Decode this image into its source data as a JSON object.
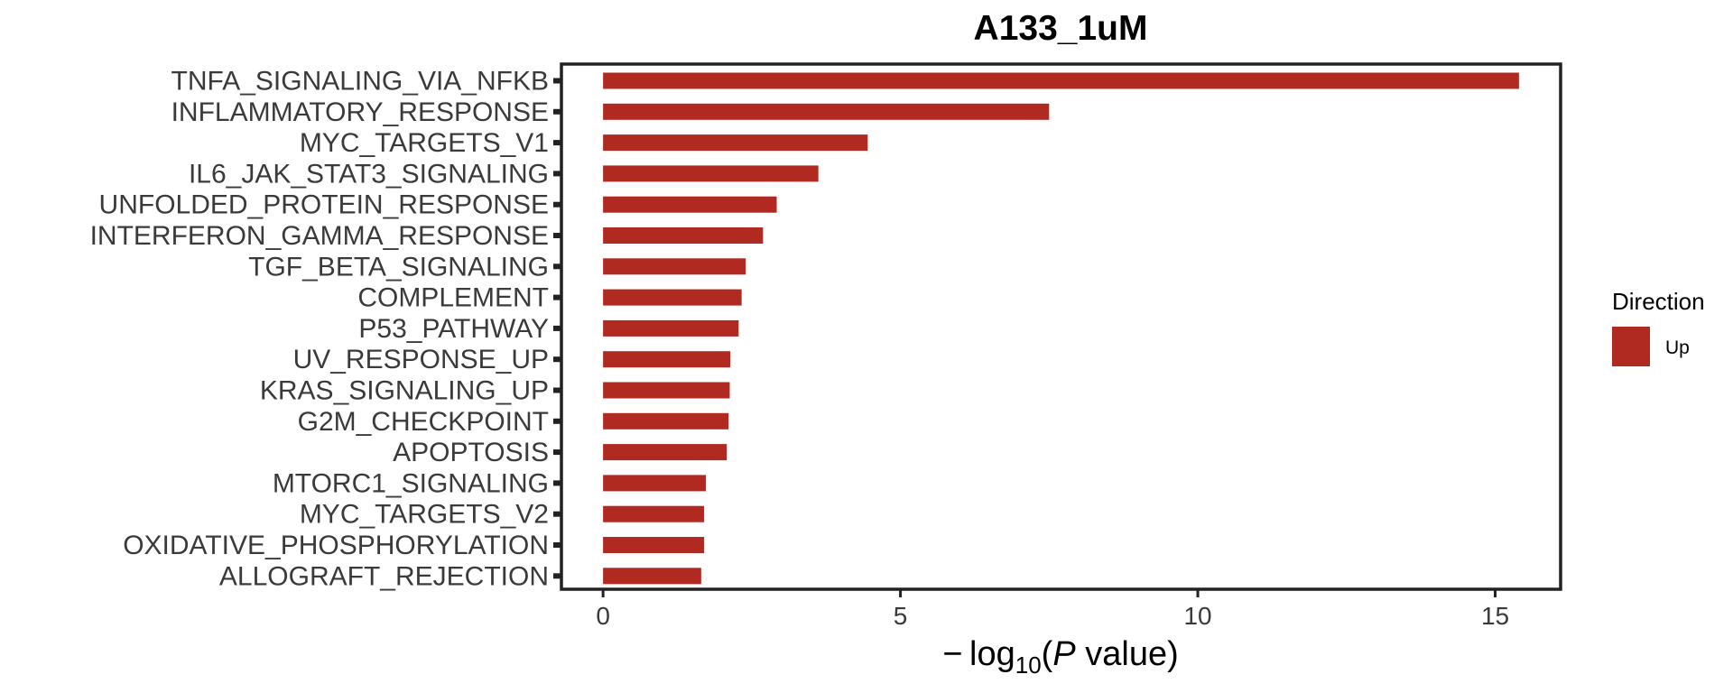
{
  "chart_data": {
    "type": "bar",
    "orientation": "horizontal",
    "title": "A133_1uM",
    "categories": [
      "TNFA_SIGNALING_VIA_NFKB",
      "INFLAMMATORY_RESPONSE",
      "MYC_TARGETS_V1",
      "IL6_JAK_STAT3_SIGNALING",
      "UNFOLDED_PROTEIN_RESPONSE",
      "INTERFERON_GAMMA_RESPONSE",
      "TGF_BETA_SIGNALING",
      "COMPLEMENT",
      "P53_PATHWAY",
      "UV_RESPONSE_UP",
      "KRAS_SIGNALING_UP",
      "G2M_CHECKPOINT",
      "APOPTOSIS",
      "MTORC1_SIGNALING",
      "MYC_TARGETS_V2",
      "OXIDATIVE_PHOSPHORYLATION",
      "ALLOGRAFT_REJECTION"
    ],
    "series": [
      {
        "name": "Up",
        "values": [
          15.4,
          7.5,
          4.45,
          3.62,
          2.92,
          2.69,
          2.4,
          2.33,
          2.28,
          2.14,
          2.13,
          2.11,
          2.08,
          1.73,
          1.7,
          1.7,
          1.65
        ]
      }
    ],
    "xlabel": {
      "prefix": "− log",
      "subscript": "10",
      "open": "(",
      "italic": "P",
      "rest": " value)"
    },
    "ylabel": "",
    "xlim": [
      -0.7,
      16.1
    ],
    "xticks": [
      0,
      5,
      10,
      15
    ],
    "grid": false,
    "legend": {
      "title": "Direction",
      "position": "right",
      "entries": [
        {
          "label": "Up",
          "color": "#b12a22"
        }
      ]
    },
    "bar_color": "#b12a22"
  }
}
